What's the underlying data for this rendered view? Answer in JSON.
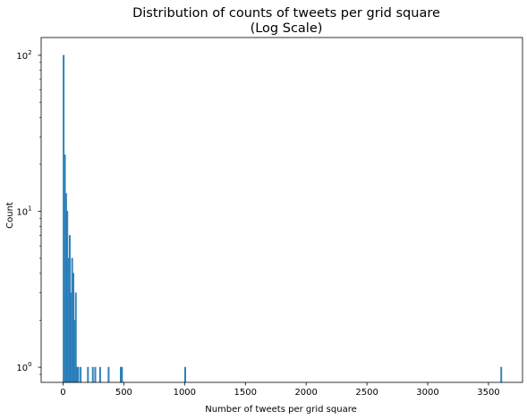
{
  "chart_data": {
    "type": "bar",
    "title": "Distribution of counts of tweets per grid square",
    "subtitle": "(Log Scale)",
    "xlabel": "Number of tweets per grid square",
    "ylabel": "Count",
    "xlim": [
      -180,
      3780
    ],
    "ylim": [
      0.8,
      130
    ],
    "yscale": "log",
    "grid": false,
    "bar_color": "#1f77b4",
    "x_ticks": [
      {
        "value": 0,
        "label": "0"
      },
      {
        "value": 500,
        "label": "500"
      },
      {
        "value": 1000,
        "label": "1000"
      },
      {
        "value": 1500,
        "label": "1500"
      },
      {
        "value": 2000,
        "label": "2000"
      },
      {
        "value": 2500,
        "label": "2500"
      },
      {
        "value": 3000,
        "label": "3000"
      },
      {
        "value": 3500,
        "label": "3500"
      }
    ],
    "y_ticks": [
      {
        "value": 1,
        "base": "10",
        "exp": "0"
      },
      {
        "value": 10,
        "base": "10",
        "exp": "1"
      },
      {
        "value": 100,
        "base": "10",
        "exp": "2"
      }
    ],
    "bin_width": 10,
    "bins": [
      {
        "x": 0,
        "count": 100
      },
      {
        "x": 10,
        "count": 23
      },
      {
        "x": 20,
        "count": 13
      },
      {
        "x": 30,
        "count": 10
      },
      {
        "x": 40,
        "count": 5
      },
      {
        "x": 50,
        "count": 7
      },
      {
        "x": 60,
        "count": 3
      },
      {
        "x": 70,
        "count": 5
      },
      {
        "x": 80,
        "count": 4
      },
      {
        "x": 90,
        "count": 2
      },
      {
        "x": 100,
        "count": 3
      },
      {
        "x": 110,
        "count": 1
      },
      {
        "x": 120,
        "count": 1
      },
      {
        "x": 140,
        "count": 1
      },
      {
        "x": 200,
        "count": 1
      },
      {
        "x": 240,
        "count": 1
      },
      {
        "x": 260,
        "count": 1
      },
      {
        "x": 300,
        "count": 1
      },
      {
        "x": 370,
        "count": 1
      },
      {
        "x": 470,
        "count": 1
      },
      {
        "x": 480,
        "count": 1
      },
      {
        "x": 1000,
        "count": 1
      },
      {
        "x": 3600,
        "count": 1
      }
    ]
  }
}
